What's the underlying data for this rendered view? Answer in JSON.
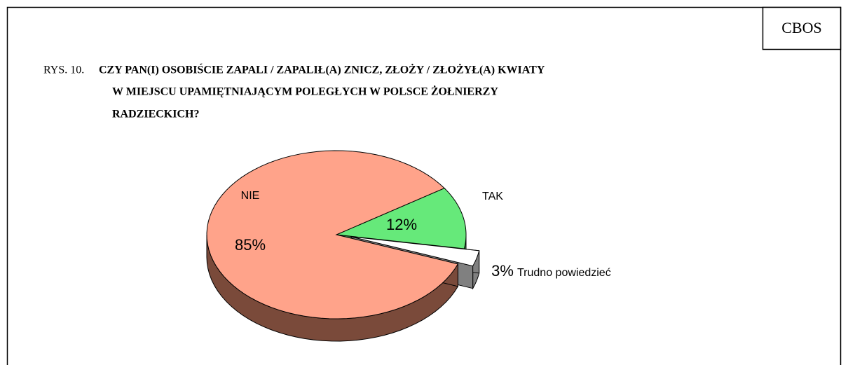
{
  "chart_data": {
    "type": "pie3d",
    "source": "CBOS",
    "title_prefix": "RYS. 10.",
    "title": [
      "CZY PAN(I) OSOBIŚCIE ZAPALI / ZAPALIŁ(A) ZNICZ, ZŁOŻY / ZŁOŻYŁ(A) KWIATY",
      "W MIEJSCU UPAMIĘTNIAJĄCYM POLEGŁYCH W POLSCE ŻOŁNIERZY",
      "RADZIECKICH?"
    ],
    "categories": [
      "TAK",
      "Trudno powiedzieć",
      "NIE"
    ],
    "values": [
      12,
      3,
      85
    ],
    "value_labels": [
      "12%",
      "3%",
      "85%"
    ],
    "colors": [
      "#66e97a",
      "#ffffff",
      "#ffa38a"
    ],
    "side_colors": [
      "#3d8a48",
      "#808080",
      "#7a4a3a"
    ],
    "exploded": [
      false,
      true,
      false
    ]
  }
}
